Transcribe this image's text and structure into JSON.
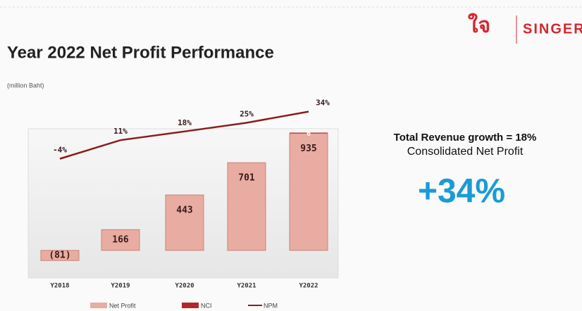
{
  "header": {
    "logo_mark": "ใจ",
    "brand": "SINGER"
  },
  "chart_data": {
    "type": "bar",
    "title": "Year 2022 Net Profit Performance",
    "subtitle": "(million Baht)",
    "categories": [
      "Y2018",
      "Y2019",
      "Y2020",
      "Y2021",
      "Y2022"
    ],
    "series": [
      {
        "name": "Net Profit",
        "color": "#e9aca2",
        "values": [
          -81,
          166,
          443,
          701,
          935
        ],
        "value_labels": [
          "(81)",
          "166",
          "443",
          "701",
          "935"
        ]
      },
      {
        "name": "NCI",
        "color": "#b3262a",
        "values": [
          null,
          null,
          null,
          null,
          6
        ]
      },
      {
        "name": "NPM",
        "color": "#8c1c1c",
        "type": "line",
        "axis": "y2",
        "values": [
          -4,
          11,
          18,
          25,
          34
        ],
        "value_labels": [
          "-4%",
          "11%",
          "18%",
          "25%",
          "34%"
        ]
      }
    ],
    "ylim": [
      -220,
      1000
    ],
    "y2lim": [
      -100,
      40
    ]
  },
  "side": {
    "line1": "Total Revenue growth = 18%",
    "line2": "Consolidated Net Profit",
    "highlight": "+34%"
  }
}
